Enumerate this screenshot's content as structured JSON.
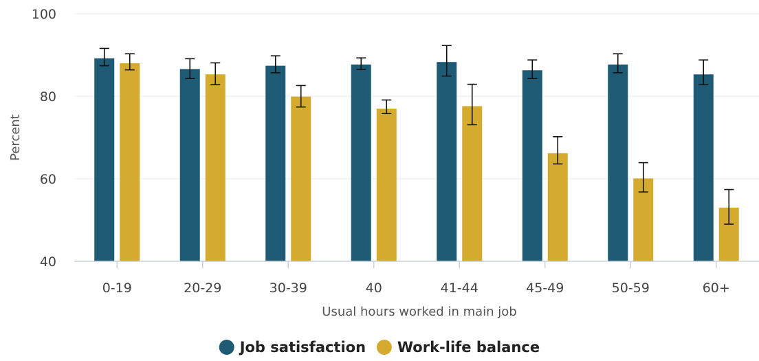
{
  "chart_data": {
    "type": "bar",
    "categories": [
      "0-19",
      "20-29",
      "30-39",
      "40",
      "41-44",
      "45-49",
      "50-59",
      "60+"
    ],
    "series": [
      {
        "name": "Job satisfaction",
        "color": "#1f5a75",
        "values": [
          89.2,
          86.6,
          87.4,
          87.7,
          88.3,
          86.3,
          87.7,
          85.3
        ],
        "error_low": [
          87.4,
          84.3,
          85.7,
          86.5,
          84.9,
          84.3,
          85.7,
          82.8
        ],
        "error_high": [
          91.6,
          89.1,
          89.8,
          89.3,
          92.3,
          88.8,
          90.3,
          88.8
        ]
      },
      {
        "name": "Work-life balance",
        "color": "#d4ab2e",
        "values": [
          88.0,
          85.3,
          79.9,
          77.0,
          77.6,
          66.2,
          60.1,
          53.0
        ],
        "error_low": [
          86.4,
          82.8,
          77.4,
          75.8,
          73.1,
          63.6,
          56.8,
          49.0
        ],
        "error_high": [
          90.3,
          88.1,
          82.6,
          79.1,
          82.9,
          70.2,
          63.9,
          57.4
        ]
      }
    ],
    "xlabel": "Usual hours worked in main job",
    "ylabel": "Percent",
    "ylim": [
      40,
      100
    ],
    "yticks": [
      "40",
      "60",
      "80",
      "100"
    ],
    "grid": true,
    "legend_position": "bottom-center"
  }
}
